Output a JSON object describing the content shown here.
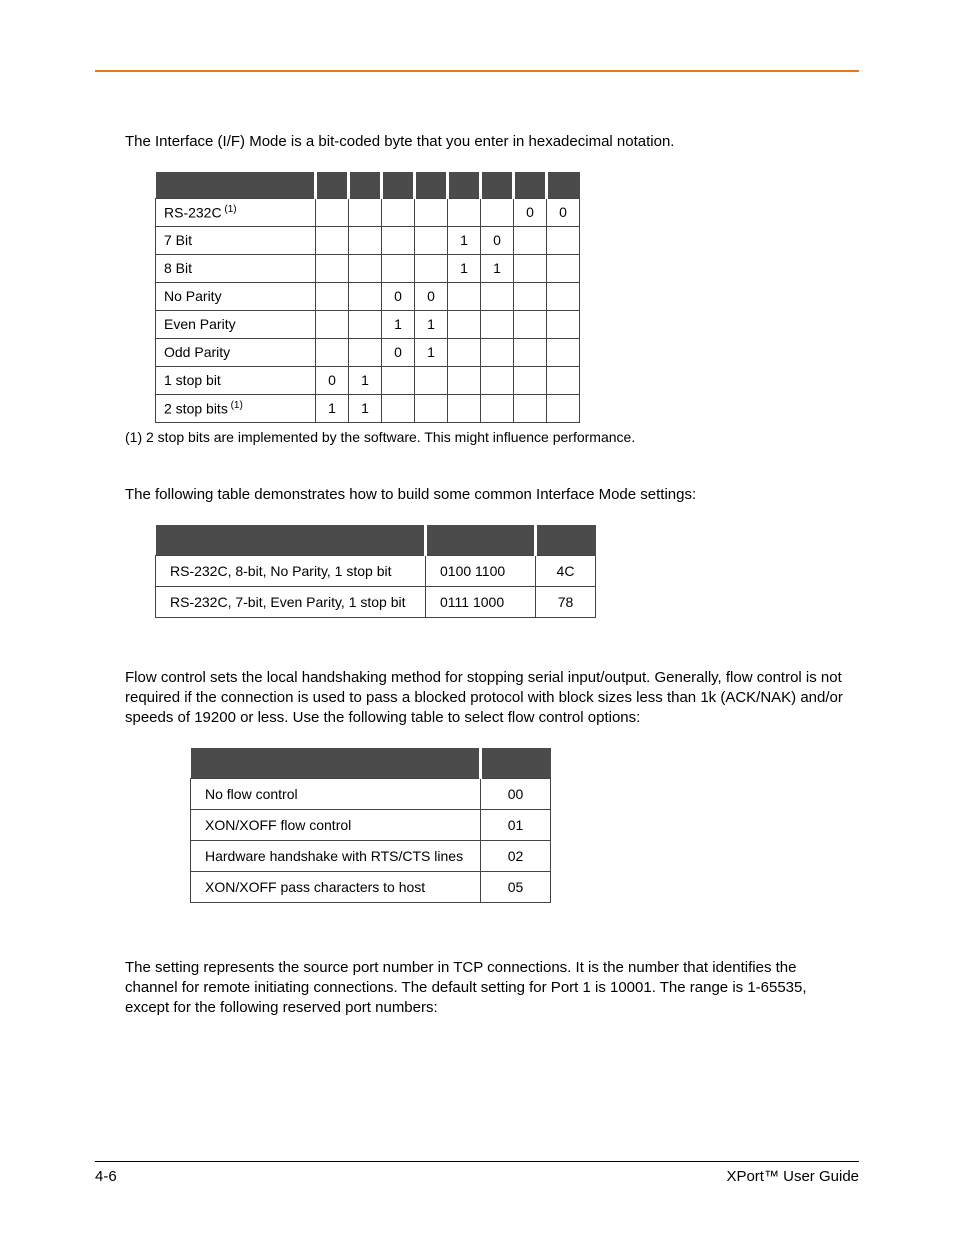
{
  "topRuleColor": "#e67817",
  "intro1": "The Interface (I/F) Mode is a bit-coded byte that you enter in hexadecimal notation.",
  "table1": {
    "headerBg": "#4b4b4b",
    "rows": [
      {
        "label": "RS-232C",
        "sup": "(1)",
        "bits": [
          "",
          "",
          "",
          "",
          "",
          "",
          "0",
          "0"
        ]
      },
      {
        "label": "7 Bit",
        "sup": "",
        "bits": [
          "",
          "",
          "",
          "",
          "1",
          "0",
          "",
          ""
        ]
      },
      {
        "label": "8 Bit",
        "sup": "",
        "bits": [
          "",
          "",
          "",
          "",
          "1",
          "1",
          "",
          ""
        ]
      },
      {
        "label": "No Parity",
        "sup": "",
        "bits": [
          "",
          "",
          "0",
          "0",
          "",
          "",
          "",
          ""
        ]
      },
      {
        "label": "Even Parity",
        "sup": "",
        "bits": [
          "",
          "",
          "1",
          "1",
          "",
          "",
          "",
          ""
        ]
      },
      {
        "label": "Odd Parity",
        "sup": "",
        "bits": [
          "",
          "",
          "0",
          "1",
          "",
          "",
          "",
          ""
        ]
      },
      {
        "label": "1 stop bit",
        "sup": "",
        "bits": [
          "0",
          "1",
          "",
          "",
          "",
          "",
          "",
          ""
        ]
      },
      {
        "label": "2 stop bits",
        "sup": "(1)",
        "bits": [
          "1",
          "1",
          "",
          "",
          "",
          "",
          "",
          ""
        ]
      }
    ]
  },
  "footnote1": "(1) 2 stop bits are implemented by the software. This might influence performance.",
  "intro2": "The following table demonstrates how to build some common Interface Mode settings:",
  "table2": {
    "rows": [
      {
        "c1": "RS-232C, 8-bit, No Parity, 1 stop bit",
        "c2": "0100 1100",
        "c3": "4C"
      },
      {
        "c1": "RS-232C, 7-bit, Even Parity, 1 stop bit",
        "c2": "0111 1000",
        "c3": "78"
      }
    ]
  },
  "intro3": "Flow control sets the local handshaking method for stopping serial input/output. Generally, flow control is not required if the connection is used to pass a blocked protocol with block sizes less than 1k (ACK/NAK) and/or speeds of 19200 or less. Use the following table to select flow control options:",
  "table3": {
    "rows": [
      {
        "c1": "No flow control",
        "c2": "00"
      },
      {
        "c1": "XON/XOFF flow control",
        "c2": "01"
      },
      {
        "c1": "Hardware handshake with RTS/CTS lines",
        "c2": "02"
      },
      {
        "c1": "XON/XOFF pass characters to host",
        "c2": "05"
      }
    ]
  },
  "intro4": "The setting represents the source port number in TCP connections. It is the number that identifies the channel for remote initiating connections. The default setting for Port 1 is 10001. The range is 1-65535, except for the following reserved port numbers:",
  "footer": {
    "left": "4-6",
    "right": "XPort™ User Guide"
  }
}
